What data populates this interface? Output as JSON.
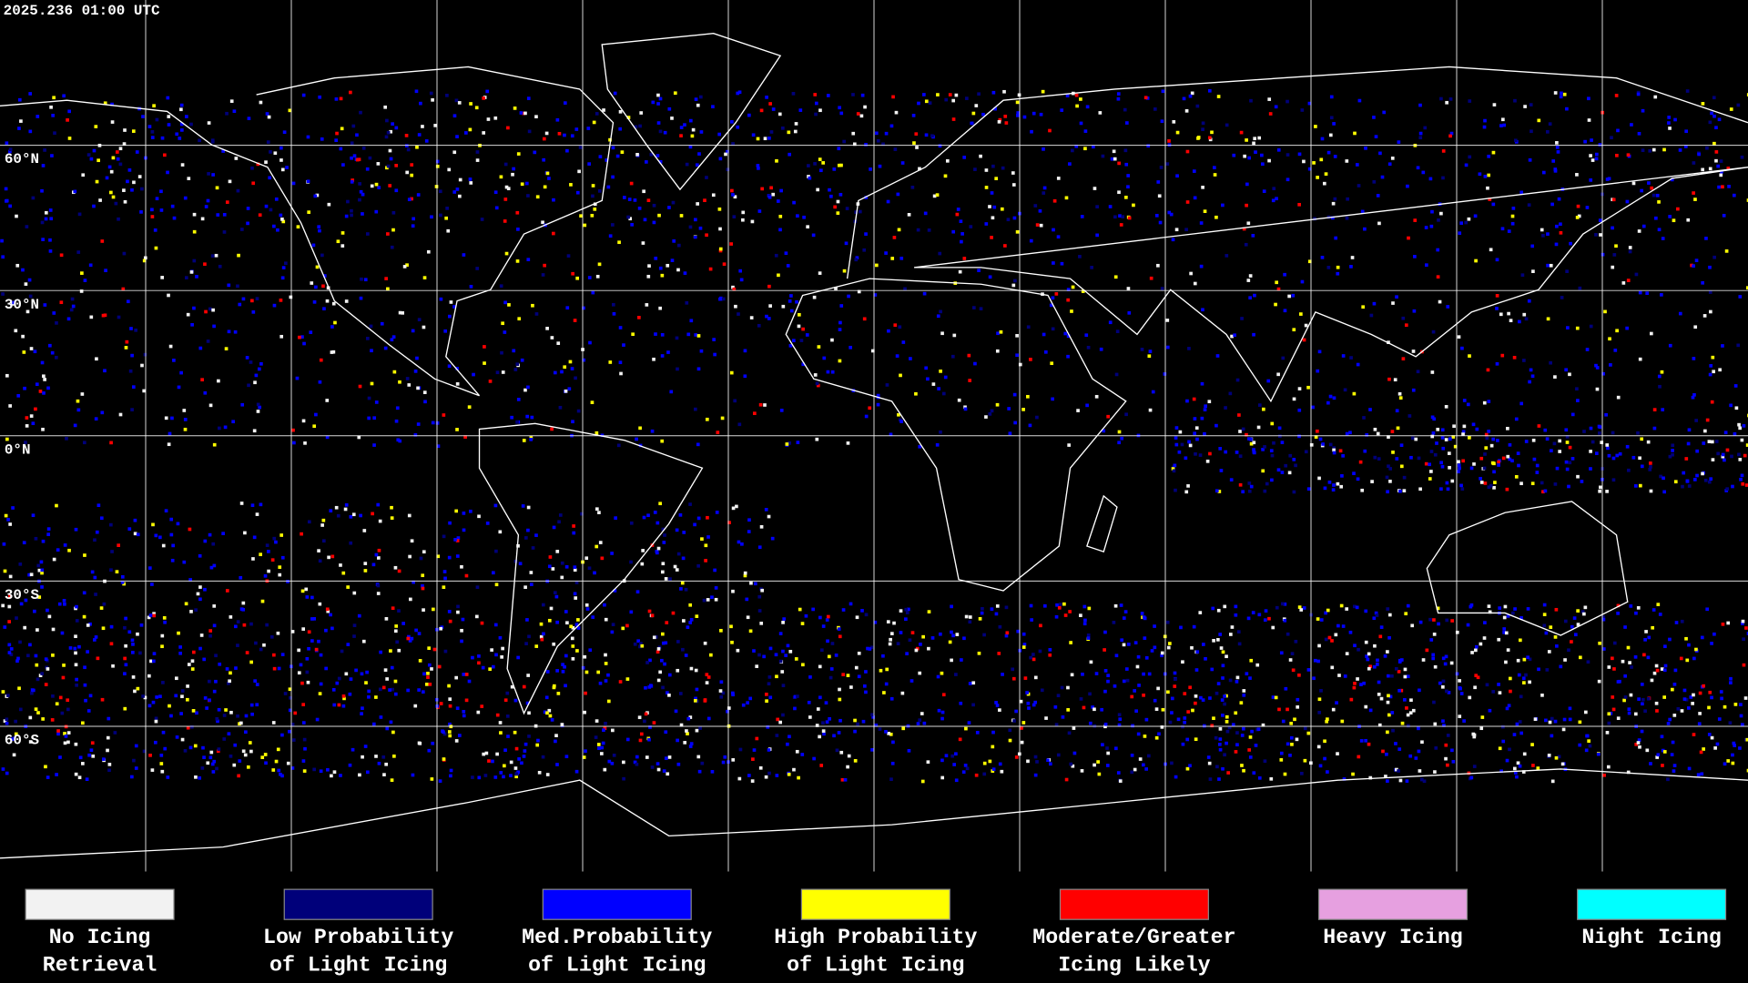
{
  "header": {
    "title": "2025.236 01:00 UTC"
  },
  "map": {
    "latitude_labels": [
      "60°N",
      "30°N",
      "0°N",
      "30°S",
      "60°S"
    ]
  },
  "legend": {
    "items": [
      {
        "label_lines": [
          "No Icing",
          "Retrieval"
        ],
        "color": "#f2f2f2"
      },
      {
        "label_lines": [
          "Low Probability",
          "of Light Icing"
        ],
        "color": "#00007a"
      },
      {
        "label_lines": [
          "Med.Probability",
          "of Light Icing"
        ],
        "color": "#0000ff"
      },
      {
        "label_lines": [
          "High Probability",
          "of Light Icing"
        ],
        "color": "#ffff00"
      },
      {
        "label_lines": [
          "Moderate/Greater",
          "Icing Likely"
        ],
        "color": "#ff0000"
      },
      {
        "label_lines": [
          "Heavy Icing"
        ],
        "color": "#e6a0e0"
      },
      {
        "label_lines": [
          "Night Icing"
        ],
        "color": "#00ffff"
      }
    ]
  }
}
